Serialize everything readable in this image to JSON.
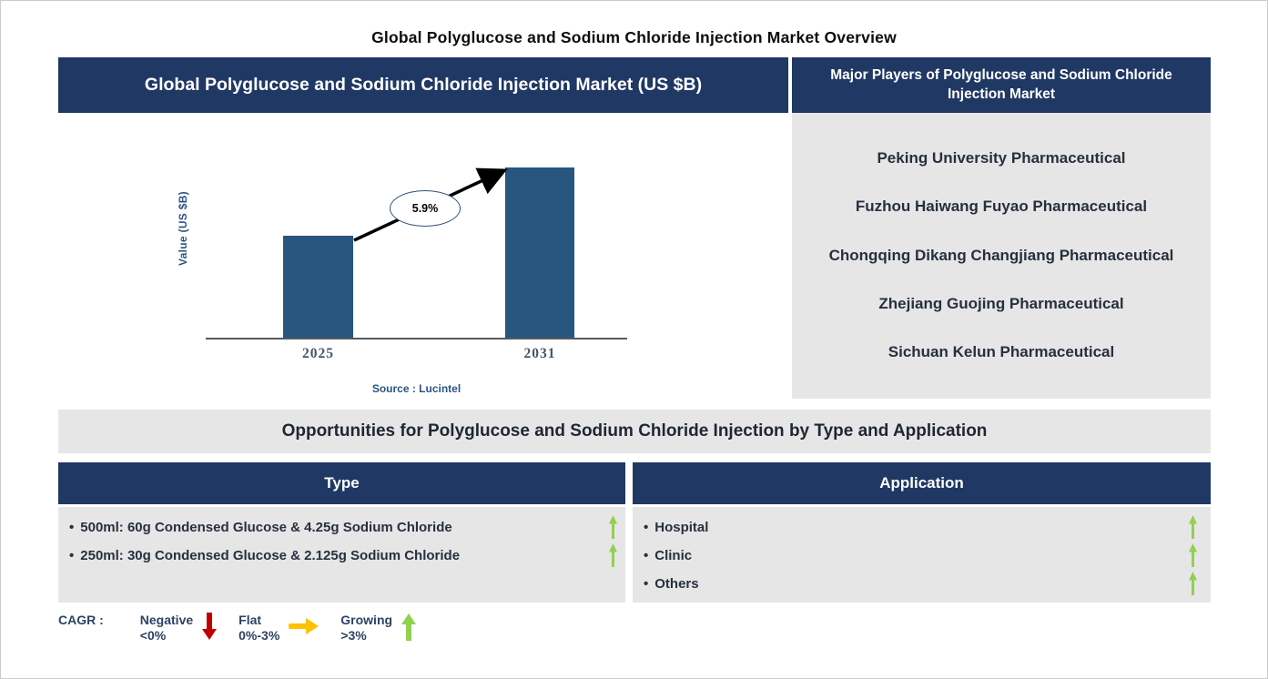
{
  "title": "Global Polyglucose and Sodium Chloride Injection Market Overview",
  "chart_panel": {
    "header": "Global Polyglucose and Sodium Chloride Injection Market (US $B)"
  },
  "chart_data": {
    "type": "bar",
    "title": "Global Polyglucose and Sodium Chloride Injection Market (US $B)",
    "ylabel": "Value (US $B)",
    "categories": [
      "2025",
      "2031"
    ],
    "values_relative": [
      0.6,
      1.0
    ],
    "value_axis_labeled": false,
    "grid": false,
    "legend_position": "none",
    "bar_color": "#28567e",
    "cagr_annotation": "5.9%",
    "source": "Source : Lucintel"
  },
  "players": {
    "header": "Major Players of Polyglucose and Sodium Chloride Injection Market",
    "items": [
      "Peking University Pharmaceutical",
      "Fuzhou Haiwang Fuyao Pharmaceutical",
      "Chongqing Dikang Changjiang Pharmaceutical",
      "Zhejiang Guojing Pharmaceutical",
      "Sichuan Kelun Pharmaceutical"
    ]
  },
  "opportunities": {
    "banner": "Opportunities for Polyglucose and Sodium Chloride Injection by Type and Application",
    "type": {
      "header": "Type",
      "items": [
        {
          "label": "500ml: 60g Condensed Glucose &  4.25g Sodium Chloride",
          "trend": "growing"
        },
        {
          "label": "250ml: 30g Condensed Glucose & 2.125g Sodium Chloride",
          "trend": "growing"
        }
      ]
    },
    "application": {
      "header": "Application",
      "items": [
        {
          "label": "Hospital",
          "trend": "growing"
        },
        {
          "label": "Clinic",
          "trend": "growing"
        },
        {
          "label": "Others",
          "trend": "growing"
        }
      ]
    }
  },
  "cagr_legend": {
    "label": "CAGR :",
    "items": [
      {
        "name": "Negative",
        "range": "<0%",
        "direction": "down",
        "color": "#c00000"
      },
      {
        "name": "Flat",
        "range": "0%-3%",
        "direction": "right",
        "color": "#ffc000"
      },
      {
        "name": "Growing",
        "range": ">3%",
        "direction": "up",
        "color": "#92d050"
      }
    ]
  },
  "colors": {
    "navy": "#203864",
    "panel_gray": "#e7e6e6",
    "bar_blue": "#28567e",
    "growing_green": "#92d050",
    "negative_red": "#c00000",
    "flat_yellow": "#ffc000"
  }
}
